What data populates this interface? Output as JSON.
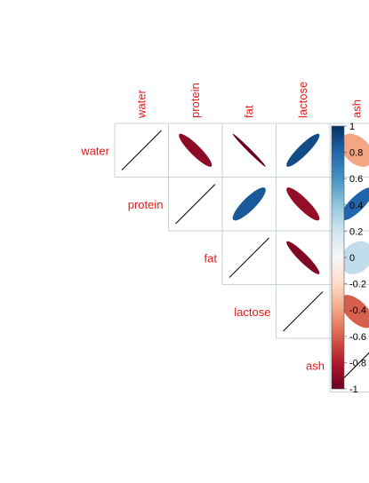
{
  "chart_data": {
    "type": "heatmap",
    "style": "correlation-ellipse-upper",
    "variables": [
      "water",
      "protein",
      "fat",
      "lactose",
      "ash"
    ],
    "correlation": [
      [
        1.0,
        -0.9,
        -0.99,
        0.9,
        -0.4
      ],
      [
        -0.9,
        1.0,
        0.85,
        -0.88,
        0.8
      ],
      [
        -0.99,
        0.85,
        1.0,
        -0.93,
        0.25
      ],
      [
        0.9,
        -0.88,
        -0.93,
        1.0,
        -0.6
      ],
      [
        -0.4,
        0.8,
        0.25,
        -0.6,
        1.0
      ]
    ],
    "colorbar": {
      "range": [
        -1,
        1
      ],
      "ticks": [
        "1",
        "0.8",
        "0.6",
        "0.4",
        "0.2",
        "0",
        "-0.2",
        "-0.4",
        "-0.6",
        "-0.8",
        "-1"
      ]
    },
    "colors": {
      "label": "#e8191a",
      "grid": "#c8d3dc",
      "neg_strong": "#67001f",
      "neg_mid": "#d6604d",
      "neutral": "#f7f7f7",
      "pos_mid": "#4393c3",
      "pos_strong": "#053061"
    }
  }
}
